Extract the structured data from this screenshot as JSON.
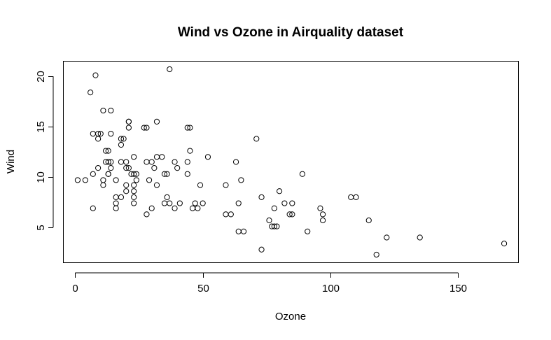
{
  "chart_data": {
    "type": "scatter",
    "title": "Wind vs Ozone in Airquality dataset",
    "xlabel": "Ozone",
    "ylabel": "Wind",
    "xlim": [
      -4.6,
      173.6
    ],
    "ylim": [
      1.5,
      21.5
    ],
    "xticks": [
      0,
      50,
      100,
      150
    ],
    "yticks": [
      5,
      10,
      15,
      20
    ],
    "grid": false,
    "legend": "none",
    "marker": "open-circle",
    "color": "#000000",
    "points": [
      {
        "x": 41,
        "y": 7.4
      },
      {
        "x": 36,
        "y": 8.0
      },
      {
        "x": 12,
        "y": 12.6
      },
      {
        "x": 18,
        "y": 11.5
      },
      {
        "x": 28,
        "y": 14.9
      },
      {
        "x": 23,
        "y": 8.6
      },
      {
        "x": 19,
        "y": 13.8
      },
      {
        "x": 8,
        "y": 20.1
      },
      {
        "x": 7,
        "y": 6.9
      },
      {
        "x": 16,
        "y": 9.7
      },
      {
        "x": 11,
        "y": 9.2
      },
      {
        "x": 14,
        "y": 10.9
      },
      {
        "x": 18,
        "y": 13.2
      },
      {
        "x": 14,
        "y": 11.5
      },
      {
        "x": 34,
        "y": 12.0
      },
      {
        "x": 6,
        "y": 18.4
      },
      {
        "x": 30,
        "y": 11.5
      },
      {
        "x": 11,
        "y": 9.7
      },
      {
        "x": 1,
        "y": 9.7
      },
      {
        "x": 11,
        "y": 16.6
      },
      {
        "x": 4,
        "y": 9.7
      },
      {
        "x": 32,
        "y": 12.0
      },
      {
        "x": 23,
        "y": 12.0
      },
      {
        "x": 45,
        "y": 14.9
      },
      {
        "x": 115,
        "y": 5.7
      },
      {
        "x": 37,
        "y": 7.4
      },
      {
        "x": 29,
        "y": 9.7
      },
      {
        "x": 71,
        "y": 13.8
      },
      {
        "x": 39,
        "y": 11.5
      },
      {
        "x": 23,
        "y": 8.0
      },
      {
        "x": 21,
        "y": 14.9
      },
      {
        "x": 37,
        "y": 20.7
      },
      {
        "x": 20,
        "y": 9.2
      },
      {
        "x": 12,
        "y": 11.5
      },
      {
        "x": 13,
        "y": 10.3
      },
      {
        "x": 135,
        "y": 4.0
      },
      {
        "x": 49,
        "y": 9.2
      },
      {
        "x": 32,
        "y": 9.2
      },
      {
        "x": 64,
        "y": 4.6
      },
      {
        "x": 40,
        "y": 10.9
      },
      {
        "x": 77,
        "y": 5.1
      },
      {
        "x": 97,
        "y": 6.3
      },
      {
        "x": 97,
        "y": 5.7
      },
      {
        "x": 85,
        "y": 7.4
      },
      {
        "x": 10,
        "y": 14.3
      },
      {
        "x": 27,
        "y": 14.9
      },
      {
        "x": 7,
        "y": 14.3
      },
      {
        "x": 48,
        "y": 6.9
      },
      {
        "x": 35,
        "y": 10.3
      },
      {
        "x": 61,
        "y": 6.3
      },
      {
        "x": 79,
        "y": 5.1
      },
      {
        "x": 63,
        "y": 11.5
      },
      {
        "x": 16,
        "y": 6.9
      },
      {
        "x": 80,
        "y": 8.6
      },
      {
        "x": 108,
        "y": 8.0
      },
      {
        "x": 20,
        "y": 8.6
      },
      {
        "x": 52,
        "y": 12.0
      },
      {
        "x": 82,
        "y": 7.4
      },
      {
        "x": 50,
        "y": 7.4
      },
      {
        "x": 64,
        "y": 7.4
      },
      {
        "x": 59,
        "y": 9.2
      },
      {
        "x": 39,
        "y": 6.9
      },
      {
        "x": 9,
        "y": 13.8
      },
      {
        "x": 16,
        "y": 7.4
      },
      {
        "x": 78,
        "y": 6.9
      },
      {
        "x": 35,
        "y": 7.4
      },
      {
        "x": 66,
        "y": 4.6
      },
      {
        "x": 122,
        "y": 4.0
      },
      {
        "x": 89,
        "y": 10.3
      },
      {
        "x": 110,
        "y": 8.0
      },
      {
        "x": 44,
        "y": 11.5
      },
      {
        "x": 28,
        "y": 11.5
      },
      {
        "x": 65,
        "y": 9.7
      },
      {
        "x": 22,
        "y": 10.3
      },
      {
        "x": 59,
        "y": 6.3
      },
      {
        "x": 23,
        "y": 7.4
      },
      {
        "x": 31,
        "y": 10.9
      },
      {
        "x": 44,
        "y": 10.3
      },
      {
        "x": 21,
        "y": 15.5
      },
      {
        "x": 9,
        "y": 14.3
      },
      {
        "x": 45,
        "y": 12.6
      },
      {
        "x": 168,
        "y": 3.4
      },
      {
        "x": 73,
        "y": 8.0
      },
      {
        "x": 76,
        "y": 5.7
      },
      {
        "x": 118,
        "y": 2.3
      },
      {
        "x": 84,
        "y": 6.3
      },
      {
        "x": 85,
        "y": 6.3
      },
      {
        "x": 96,
        "y": 6.9
      },
      {
        "x": 78,
        "y": 5.1
      },
      {
        "x": 73,
        "y": 2.8
      },
      {
        "x": 91,
        "y": 4.6
      },
      {
        "x": 47,
        "y": 7.4
      },
      {
        "x": 32,
        "y": 15.5
      },
      {
        "x": 20,
        "y": 10.9
      },
      {
        "x": 23,
        "y": 10.3
      },
      {
        "x": 21,
        "y": 10.9
      },
      {
        "x": 24,
        "y": 9.7
      },
      {
        "x": 44,
        "y": 14.9
      },
      {
        "x": 21,
        "y": 15.5
      },
      {
        "x": 28,
        "y": 6.3
      },
      {
        "x": 9,
        "y": 10.9
      },
      {
        "x": 13,
        "y": 11.5
      },
      {
        "x": 46,
        "y": 6.9
      },
      {
        "x": 18,
        "y": 13.8
      },
      {
        "x": 13,
        "y": 10.3
      },
      {
        "x": 24,
        "y": 10.3
      },
      {
        "x": 16,
        "y": 8.0
      },
      {
        "x": 13,
        "y": 12.6
      },
      {
        "x": 23,
        "y": 9.2
      },
      {
        "x": 36,
        "y": 10.3
      },
      {
        "x": 7,
        "y": 10.3
      },
      {
        "x": 14,
        "y": 16.6
      },
      {
        "x": 30,
        "y": 6.9
      },
      {
        "x": 14,
        "y": 14.3
      },
      {
        "x": 18,
        "y": 8.0
      },
      {
        "x": 20,
        "y": 11.5
      }
    ]
  }
}
